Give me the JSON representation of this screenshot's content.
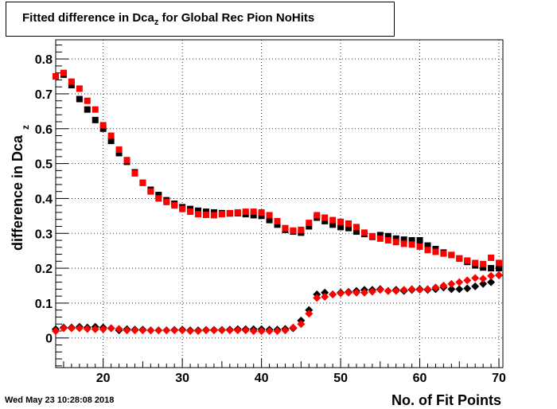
{
  "title": {
    "main": "Fitted difference in Dca",
    "sub": "z",
    "rest": " for Global Rec Pion NoHits"
  },
  "footer_date": "Wed May 23 10:28:08 2018",
  "chart_data": {
    "type": "scatter",
    "title": "Fitted difference in Dca_z for Global Rec Pion NoHits",
    "xlabel": "No. of Fit Points",
    "ylabel": "difference in Dca",
    "ylabel_sub": "z",
    "xlim": [
      14,
      70.5
    ],
    "ylim": [
      -0.085,
      0.855
    ],
    "x_ticks": [
      20,
      30,
      40,
      50,
      60,
      70
    ],
    "y_ticks": [
      0,
      0.1,
      0.2,
      0.3,
      0.4,
      0.5,
      0.6,
      0.7,
      0.8
    ],
    "x_tick_labels": [
      "20",
      "30",
      "40",
      "50",
      "60",
      "70"
    ],
    "y_tick_labels": [
      "0",
      "0.1",
      "0.2",
      "0.3",
      "0.4",
      "0.5",
      "0.6",
      "0.7",
      "0.8"
    ],
    "grid": true,
    "colors": {
      "black": "#000000",
      "red": "#ff0000"
    },
    "x": [
      14,
      15,
      16,
      17,
      18,
      19,
      20,
      21,
      22,
      23,
      24,
      25,
      26,
      27,
      28,
      29,
      30,
      31,
      32,
      33,
      34,
      35,
      36,
      37,
      38,
      39,
      40,
      41,
      42,
      43,
      44,
      45,
      46,
      47,
      48,
      49,
      50,
      51,
      52,
      53,
      54,
      55,
      56,
      57,
      58,
      59,
      60,
      61,
      62,
      63,
      64,
      65,
      66,
      67,
      68,
      69,
      70
    ],
    "series": [
      {
        "marker": "square",
        "color": "#000000",
        "values": [
          0.75,
          0.755,
          0.725,
          0.685,
          0.655,
          0.625,
          0.6,
          0.565,
          0.53,
          0.505,
          0.475,
          0.445,
          0.425,
          0.41,
          0.395,
          0.385,
          0.375,
          0.37,
          0.365,
          0.362,
          0.36,
          0.358,
          0.357,
          0.358,
          0.355,
          0.352,
          0.35,
          0.338,
          0.325,
          0.31,
          0.305,
          0.302,
          0.32,
          0.345,
          0.335,
          0.325,
          0.318,
          0.315,
          0.305,
          0.298,
          0.29,
          0.295,
          0.292,
          0.285,
          0.282,
          0.28,
          0.28,
          0.265,
          0.255,
          0.245,
          0.238,
          0.228,
          0.218,
          0.208,
          0.202,
          0.2,
          0.2
        ]
      },
      {
        "marker": "square",
        "color": "#ff0000",
        "values": [
          0.75,
          0.76,
          0.735,
          0.715,
          0.68,
          0.655,
          0.61,
          0.58,
          0.54,
          0.51,
          0.472,
          0.445,
          0.42,
          0.4,
          0.39,
          0.38,
          0.37,
          0.362,
          0.355,
          0.353,
          0.352,
          0.355,
          0.358,
          0.36,
          0.362,
          0.362,
          0.36,
          0.352,
          0.335,
          0.315,
          0.308,
          0.31,
          0.33,
          0.352,
          0.345,
          0.338,
          0.333,
          0.328,
          0.318,
          0.302,
          0.292,
          0.285,
          0.28,
          0.275,
          0.27,
          0.268,
          0.262,
          0.252,
          0.247,
          0.242,
          0.238,
          0.228,
          0.222,
          0.215,
          0.212,
          0.23,
          0.215
        ]
      },
      {
        "marker": "diamond",
        "color": "#000000",
        "values": [
          0.025,
          0.03,
          0.03,
          0.032,
          0.03,
          0.032,
          0.03,
          0.028,
          0.022,
          0.025,
          0.024,
          0.024,
          0.022,
          0.022,
          0.022,
          0.023,
          0.024,
          0.022,
          0.022,
          0.023,
          0.023,
          0.023,
          0.024,
          0.025,
          0.025,
          0.025,
          0.025,
          0.024,
          0.024,
          0.026,
          0.028,
          0.05,
          0.08,
          0.125,
          0.13,
          0.125,
          0.13,
          0.132,
          0.135,
          0.138,
          0.138,
          0.14,
          0.135,
          0.138,
          0.135,
          0.138,
          0.14,
          0.138,
          0.14,
          0.145,
          0.14,
          0.14,
          0.142,
          0.148,
          0.155,
          0.16,
          0.18
        ]
      },
      {
        "marker": "diamond",
        "color": "#ff0000",
        "values": [
          0.02,
          0.028,
          0.028,
          0.028,
          0.026,
          0.025,
          0.025,
          0.028,
          0.026,
          0.022,
          0.022,
          0.022,
          0.022,
          0.022,
          0.022,
          0.022,
          0.022,
          0.02,
          0.02,
          0.022,
          0.022,
          0.022,
          0.022,
          0.022,
          0.022,
          0.02,
          0.02,
          0.02,
          0.02,
          0.022,
          0.03,
          0.04,
          0.07,
          0.115,
          0.118,
          0.125,
          0.128,
          0.13,
          0.13,
          0.13,
          0.133,
          0.138,
          0.135,
          0.135,
          0.138,
          0.14,
          0.138,
          0.14,
          0.145,
          0.15,
          0.155,
          0.16,
          0.165,
          0.172,
          0.17,
          0.178,
          0.18
        ]
      }
    ]
  }
}
